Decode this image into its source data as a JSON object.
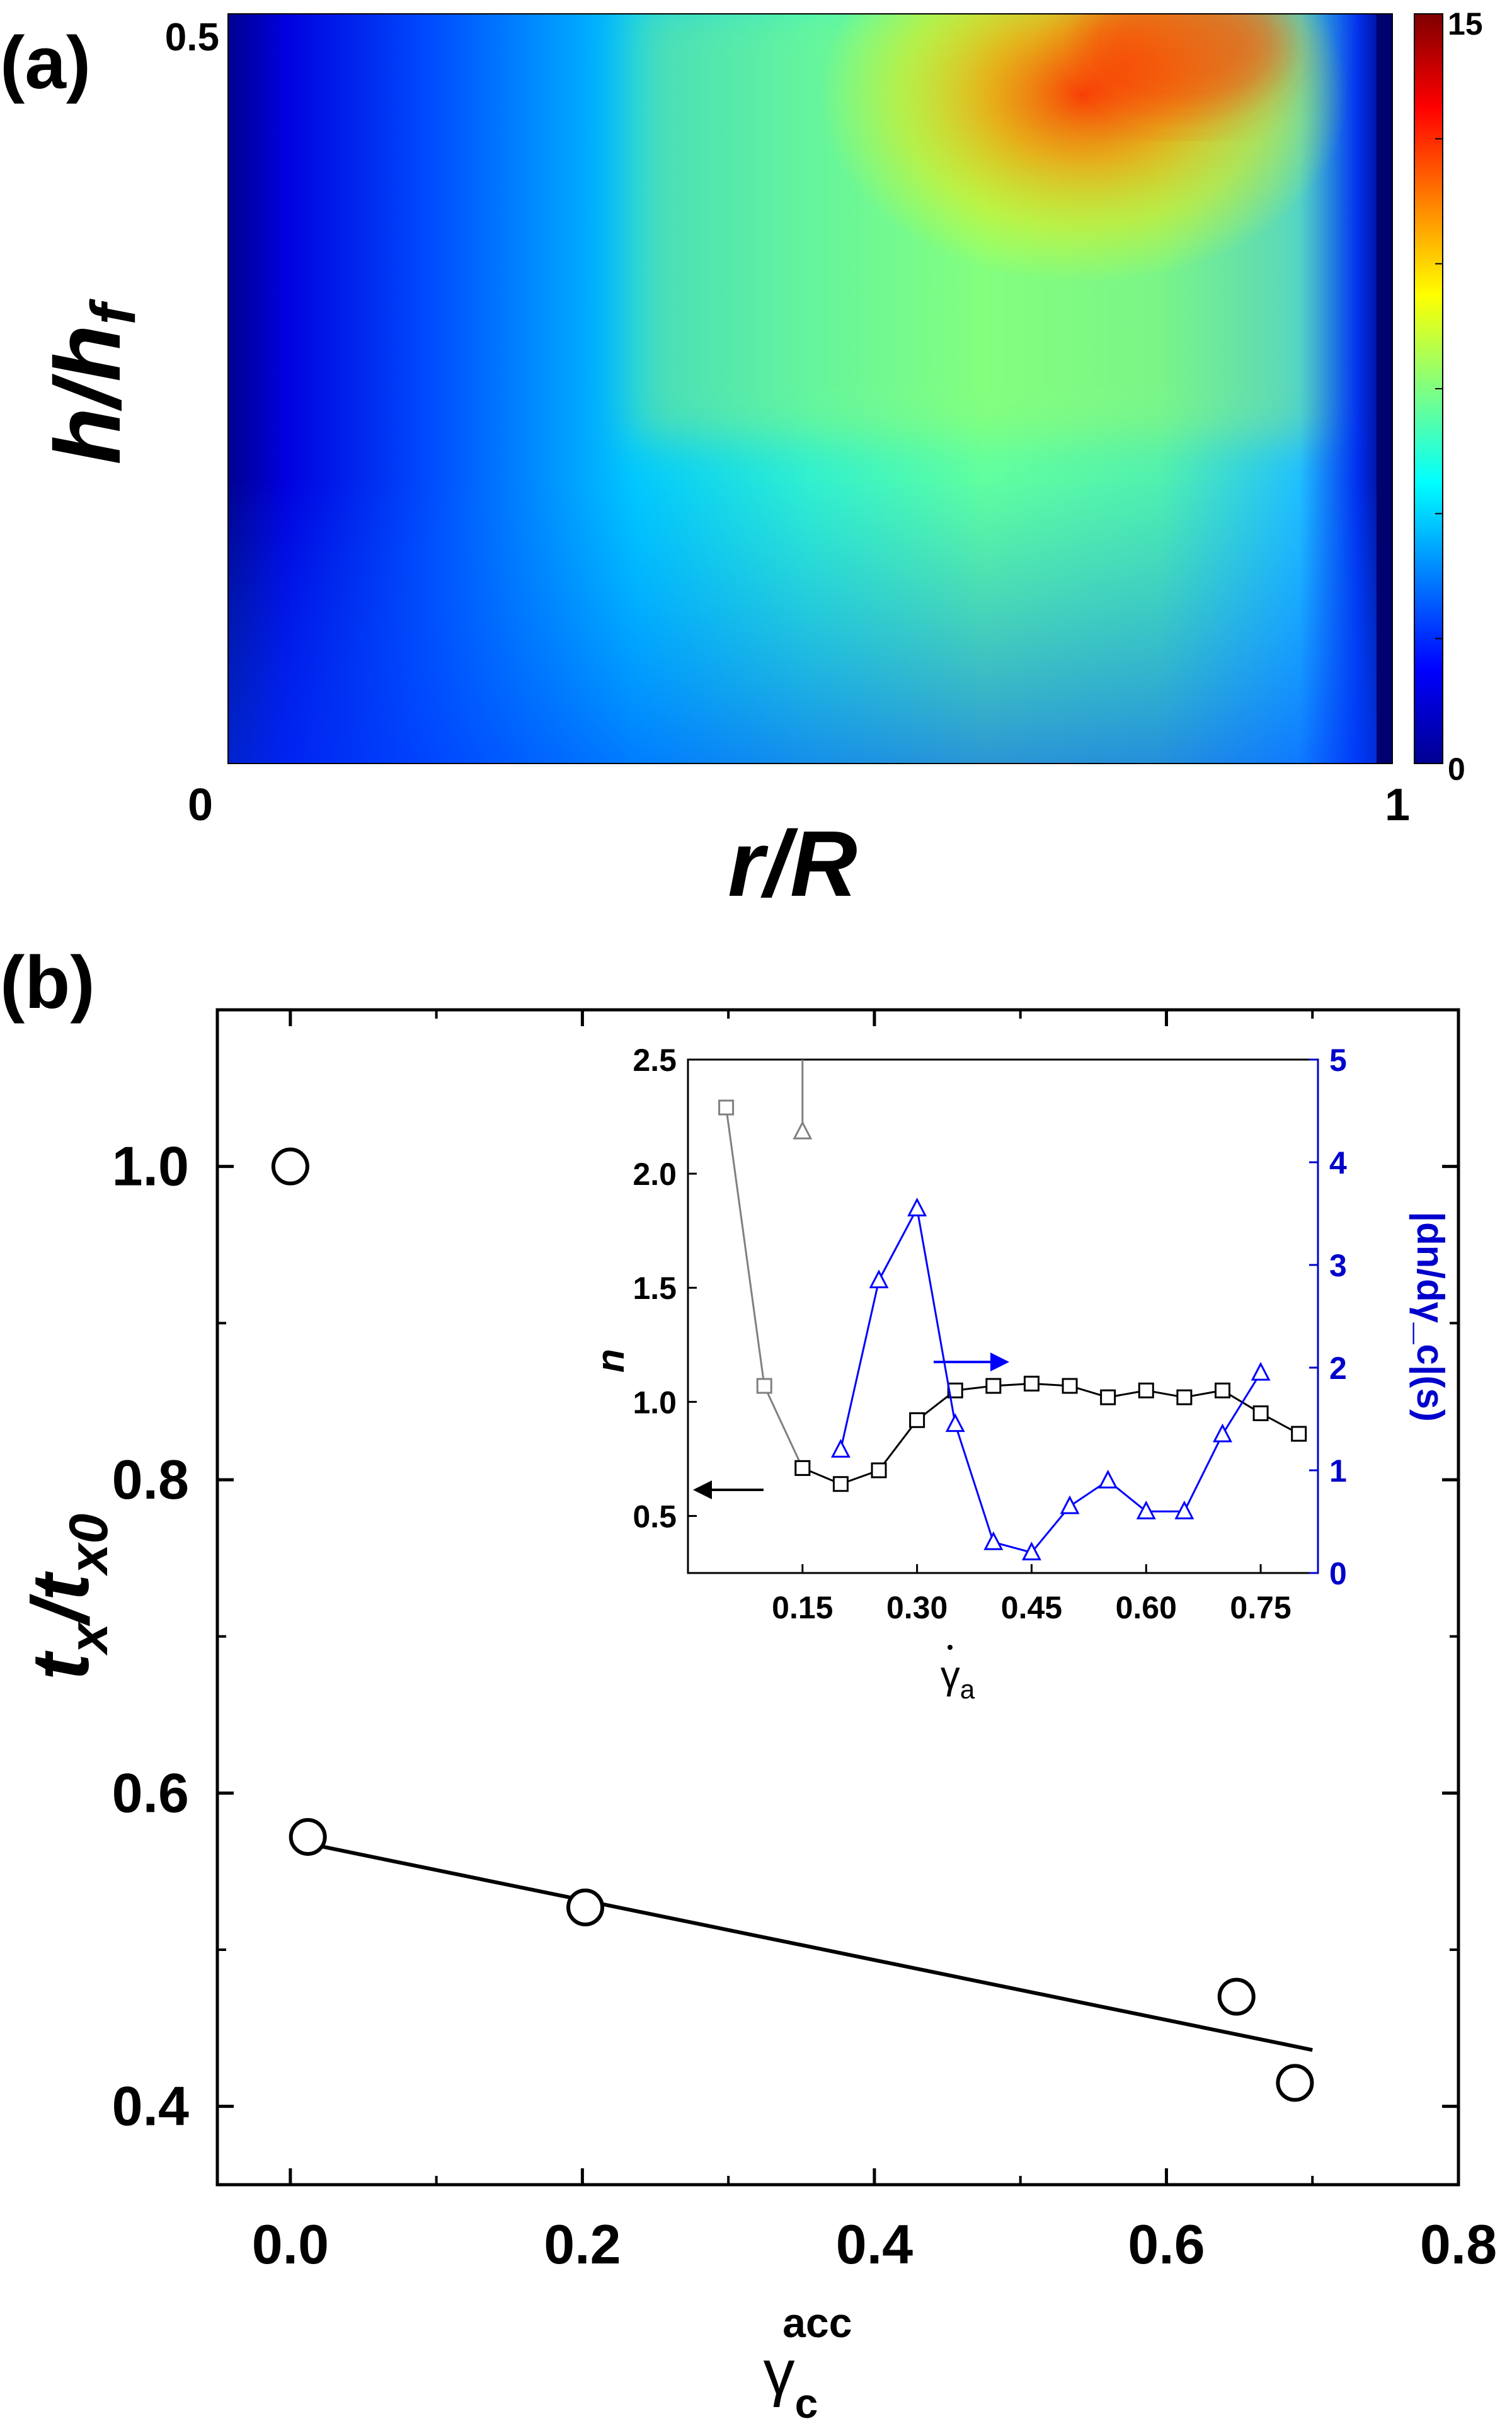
{
  "colors": {
    "axis": "#000000",
    "inset_right_axis": "#0000cc",
    "series_black": "#000000",
    "series_gray": "#808080",
    "series_blue": "#0000ff",
    "colormap": [
      "#00008f",
      "#0000ff",
      "#0080ff",
      "#00ffff",
      "#80ff80",
      "#ffff00",
      "#ff8000",
      "#ff0000",
      "#800000"
    ]
  },
  "chart_data": [
    {
      "panel": "(a)",
      "type": "heatmap",
      "xlabel": "r/R",
      "ylabel": "h/h_f",
      "ylabel_main": "h/h",
      "ylabel_sub": "f",
      "x_ticks": [
        "0",
        "1"
      ],
      "y_ticks": [
        "0.5"
      ],
      "xlim": [
        0,
        1
      ],
      "ylim": [
        0,
        0.5
      ],
      "colorbar": {
        "min_label": "0",
        "max_label": "15",
        "range": [
          0,
          15
        ],
        "colormap": "jet"
      }
    },
    {
      "panel": "(b)",
      "type": "scatter",
      "xlabel": "γ_c^acc",
      "xlabel_base": "γ",
      "xlabel_sub": "c",
      "xlabel_sup": "acc",
      "ylabel": "t_x / t_x0",
      "ylabel_t1": "t",
      "ylabel_s1": "x",
      "ylabel_slash": "/",
      "ylabel_t2": "t",
      "ylabel_s2": "x0",
      "xlim": [
        -0.05,
        0.8
      ],
      "ylim": [
        0.35,
        1.1
      ],
      "x_ticks": [
        "0.0",
        "0.2",
        "0.4",
        "0.6",
        "0.8"
      ],
      "y_ticks": [
        "0.4",
        "0.6",
        "0.8",
        "1.0"
      ],
      "points": [
        {
          "x": 0.0,
          "y": 1.0
        },
        {
          "x": 0.012,
          "y": 0.572
        },
        {
          "x": 0.202,
          "y": 0.527
        },
        {
          "x": 0.648,
          "y": 0.47
        },
        {
          "x": 0.688,
          "y": 0.415
        }
      ],
      "fit_line": {
        "x": [
          0.0,
          0.7
        ],
        "y": [
          0.57,
          0.436
        ]
      }
    },
    {
      "panel": "(b) inset",
      "type": "line",
      "xlabel": "γ̇_a",
      "xlabel_base": "γ",
      "xlabel_sub": "a",
      "ylabel_left": "n",
      "ylabel_right": "|dn/dγ_c|(s)",
      "xlim": [
        0.0,
        0.825
      ],
      "ylim_left": [
        0.25,
        2.5
      ],
      "ylim_right": [
        0,
        5
      ],
      "x_ticks": [
        "0.15",
        "0.30",
        "0.45",
        "0.60",
        "0.75"
      ],
      "y_ticks_left": [
        "0.5",
        "1.0",
        "1.5",
        "2.0",
        "2.5"
      ],
      "y_ticks_right": [
        "0",
        "1",
        "2",
        "3",
        "4",
        "5"
      ],
      "series": [
        {
          "axis": "left",
          "marker": "square",
          "color": "gray",
          "x": [
            0.05,
            0.1,
            0.15
          ],
          "y": [
            2.29,
            1.07,
            0.71
          ]
        },
        {
          "axis": "left",
          "marker": "square",
          "color": "black",
          "x": [
            0.15,
            0.2,
            0.25,
            0.3,
            0.35,
            0.4,
            0.45,
            0.5,
            0.55,
            0.6,
            0.65,
            0.7,
            0.75,
            0.8
          ],
          "y": [
            0.71,
            0.64,
            0.7,
            0.92,
            1.05,
            1.07,
            1.08,
            1.07,
            1.02,
            1.05,
            1.02,
            1.05,
            0.95,
            0.86
          ]
        },
        {
          "axis": "right",
          "marker": "triangle",
          "color": "gray",
          "x": [
            0.15,
            0.15
          ],
          "y": [
            5.0,
            4.3
          ]
        },
        {
          "axis": "right",
          "marker": "triangle",
          "color": "blue",
          "x": [
            0.2,
            0.25,
            0.3,
            0.35,
            0.4,
            0.45,
            0.5,
            0.55,
            0.6,
            0.65,
            0.7,
            0.75
          ],
          "y": [
            1.2,
            2.85,
            3.55,
            1.45,
            0.3,
            0.2,
            0.65,
            0.9,
            0.6,
            0.6,
            1.35,
            1.95
          ]
        }
      ]
    }
  ]
}
